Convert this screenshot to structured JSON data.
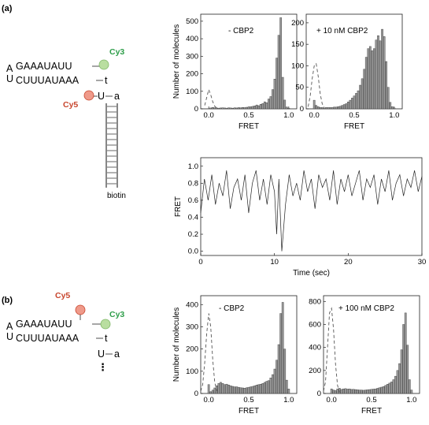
{
  "panel_a": {
    "label": "(a)",
    "construct": {
      "top_strand": "GAAAUAUU",
      "bottom_strand": "CUUUAUAAA",
      "loop_top": "A",
      "loop_bottom": "U",
      "pair1_left": "A",
      "pair1_right": "t",
      "pair2_left": "U",
      "pair2_right": "a",
      "dye_donor": "Cy3",
      "dye_acceptor": "Cy5",
      "tether": "biotin"
    }
  },
  "panel_b": {
    "label": "(b)",
    "construct": {
      "top_strand": "GAAAUAUU",
      "bottom_strand": "CUUUAUAAA",
      "loop_top": "A",
      "loop_bottom": "U",
      "pair1_left": "A",
      "pair1_right": "t",
      "pair2_left": "U",
      "pair2_right": "a",
      "ellipsis": "⋮",
      "dye_donor": "Cy3",
      "dye_acceptor": "Cy5"
    }
  },
  "colors": {
    "cy3": "#2e9e4a",
    "cy3_bead": "#b9dea0",
    "cy5": "#c8462e",
    "cy5_bead": "#ef9a8a"
  },
  "chart_data": [
    {
      "type": "bar",
      "panel": "(a)",
      "annotation": "- CBP2",
      "xlabel": "FRET",
      "ylabel": "Number of molecules",
      "xlim": [
        -0.1,
        1.1
      ],
      "ylim": [
        0,
        540
      ],
      "xticks": [
        "0.0",
        "0.5",
        "1.0"
      ],
      "yticks": [
        "0",
        "100",
        "200",
        "300",
        "400",
        "500"
      ],
      "bin_width": 0.025,
      "bins_x": [
        0.0,
        0.025,
        0.05,
        0.075,
        0.1,
        0.125,
        0.15,
        0.175,
        0.2,
        0.225,
        0.25,
        0.275,
        0.3,
        0.325,
        0.35,
        0.375,
        0.4,
        0.425,
        0.45,
        0.475,
        0.5,
        0.525,
        0.55,
        0.575,
        0.6,
        0.625,
        0.65,
        0.675,
        0.7,
        0.725,
        0.75,
        0.775,
        0.8,
        0.825,
        0.85,
        0.875,
        0.9,
        0.925,
        0.95,
        0.975,
        1.0
      ],
      "bars": [
        0,
        5,
        8,
        6,
        5,
        4,
        5,
        6,
        5,
        4,
        6,
        5,
        4,
        6,
        5,
        7,
        6,
        8,
        7,
        9,
        10,
        12,
        14,
        17,
        22,
        18,
        26,
        30,
        40,
        35,
        56,
        70,
        110,
        170,
        290,
        420,
        520,
        180,
        50,
        10,
        4
      ],
      "dashed_curve": {
        "x": [
          -0.05,
          -0.025,
          0.0,
          0.025,
          0.05,
          0.075,
          0.1
        ],
        "y": [
          20,
          65,
          110,
          80,
          40,
          15,
          5
        ]
      }
    },
    {
      "type": "bar",
      "panel": "(a)",
      "annotation": "+ 10 nM CBP2",
      "xlabel": "FRET",
      "ylabel": "",
      "xlim": [
        -0.1,
        1.1
      ],
      "ylim": [
        0,
        220
      ],
      "xticks": [
        "0.0",
        "0.5",
        "1.0"
      ],
      "yticks": [
        "0",
        "50",
        "100",
        "150",
        "200"
      ],
      "bin_width": 0.025,
      "bins_x": [
        0.0,
        0.025,
        0.05,
        0.075,
        0.1,
        0.125,
        0.15,
        0.175,
        0.2,
        0.225,
        0.25,
        0.275,
        0.3,
        0.325,
        0.35,
        0.375,
        0.4,
        0.425,
        0.45,
        0.475,
        0.5,
        0.525,
        0.55,
        0.575,
        0.6,
        0.625,
        0.65,
        0.675,
        0.7,
        0.725,
        0.75,
        0.775,
        0.8,
        0.825,
        0.85,
        0.875,
        0.9,
        0.925,
        0.95,
        0.975,
        1.0
      ],
      "bars": [
        20,
        8,
        5,
        3,
        3,
        2,
        3,
        3,
        3,
        3,
        4,
        4,
        5,
        6,
        8,
        10,
        12,
        16,
        20,
        25,
        30,
        36,
        42,
        55,
        70,
        92,
        120,
        140,
        145,
        135,
        140,
        160,
        170,
        158,
        185,
        168,
        110,
        50,
        15,
        5,
        2
      ],
      "dashed_curve": {
        "x": [
          -0.075,
          -0.05,
          -0.025,
          0.0,
          0.025,
          0.05,
          0.075,
          0.1,
          0.125
        ],
        "y": [
          5,
          30,
          70,
          100,
          105,
          75,
          35,
          12,
          3
        ]
      }
    },
    {
      "type": "line",
      "panel": "(a)",
      "xlabel": "Time (sec)",
      "ylabel": "FRET",
      "xlim": [
        0,
        30
      ],
      "ylim": [
        -0.05,
        1.1
      ],
      "xticks": [
        "0",
        "10",
        "20",
        "30"
      ],
      "yticks": [
        "0.0",
        "0.2",
        "0.4",
        "0.6",
        "0.8",
        "1.0"
      ],
      "series": [
        {
          "x": [
            0,
            0.5,
            1,
            1.5,
            2,
            2.5,
            3,
            3.5,
            4,
            4.5,
            5,
            5.5,
            6,
            6.5,
            7,
            7.5,
            8,
            8.5,
            9,
            9.5,
            10,
            10.3,
            10.6,
            11,
            11.5,
            12,
            12.5,
            13,
            13.5,
            14,
            14.5,
            15,
            15.5,
            16,
            16.5,
            17,
            17.5,
            18,
            18.5,
            19,
            19.5,
            20,
            20.5,
            21,
            21.5,
            22,
            22.5,
            23,
            23.5,
            24,
            24.5,
            25,
            25.5,
            26,
            26.5,
            27,
            27.5,
            28,
            28.5,
            29,
            29.5,
            30
          ],
          "y": [
            0.45,
            0.85,
            0.6,
            0.9,
            0.55,
            0.8,
            0.65,
            0.95,
            0.5,
            0.75,
            0.85,
            0.6,
            0.9,
            0.45,
            0.8,
            0.95,
            0.6,
            0.85,
            0.55,
            0.9,
            0.7,
            0.2,
            0.85,
            0.0,
            0.55,
            0.9,
            0.65,
            0.8,
            0.6,
            0.95,
            0.7,
            0.85,
            0.5,
            0.9,
            0.75,
            0.85,
            0.6,
            0.95,
            0.55,
            0.85,
            0.7,
            0.9,
            0.65,
            0.8,
            0.95,
            0.6,
            0.85,
            0.75,
            0.9,
            0.55,
            0.85,
            0.7,
            0.95,
            0.6,
            0.8,
            0.9,
            0.65,
            0.85,
            0.75,
            0.95,
            0.7,
            0.88
          ]
        }
      ]
    },
    {
      "type": "bar",
      "panel": "(b)",
      "annotation": "- CBP2",
      "xlabel": "FRET",
      "ylabel": "Number of molecules",
      "xlim": [
        -0.1,
        1.1
      ],
      "ylim": [
        0,
        440
      ],
      "xticks": [
        "0.0",
        "0.5",
        "1.0"
      ],
      "yticks": [
        "0",
        "100",
        "200",
        "300",
        "400"
      ],
      "bin_width": 0.025,
      "bins_x": [
        0.0,
        0.025,
        0.05,
        0.075,
        0.1,
        0.125,
        0.15,
        0.175,
        0.2,
        0.225,
        0.25,
        0.275,
        0.3,
        0.325,
        0.35,
        0.375,
        0.4,
        0.425,
        0.45,
        0.475,
        0.5,
        0.525,
        0.55,
        0.575,
        0.6,
        0.625,
        0.65,
        0.675,
        0.7,
        0.725,
        0.75,
        0.775,
        0.8,
        0.825,
        0.85,
        0.875,
        0.9,
        0.925,
        0.95,
        0.975,
        1.0
      ],
      "bars": [
        40,
        8,
        15,
        25,
        35,
        45,
        50,
        45,
        40,
        42,
        38,
        35,
        32,
        30,
        30,
        28,
        26,
        25,
        24,
        26,
        28,
        30,
        32,
        35,
        38,
        40,
        42,
        45,
        50,
        55,
        58,
        70,
        85,
        110,
        150,
        220,
        360,
        410,
        200,
        60,
        20
      ],
      "dashed_curve": {
        "x": [
          -0.1,
          -0.075,
          -0.05,
          -0.025,
          0.0,
          0.025,
          0.05,
          0.075,
          0.1,
          0.125
        ],
        "y": [
          10,
          40,
          140,
          270,
          360,
          300,
          150,
          50,
          15,
          3
        ]
      }
    },
    {
      "type": "bar",
      "panel": "(b)",
      "annotation": "+ 100 nM CBP2",
      "xlabel": "FRET",
      "ylabel": "",
      "xlim": [
        -0.1,
        1.1
      ],
      "ylim": [
        0,
        850
      ],
      "xticks": [
        "0.0",
        "0.5",
        "1.0"
      ],
      "yticks": [
        "0",
        "200",
        "400",
        "600",
        "800"
      ],
      "bin_width": 0.025,
      "bins_x": [
        0.0,
        0.025,
        0.05,
        0.075,
        0.1,
        0.125,
        0.15,
        0.175,
        0.2,
        0.225,
        0.25,
        0.275,
        0.3,
        0.325,
        0.35,
        0.375,
        0.4,
        0.425,
        0.45,
        0.475,
        0.5,
        0.525,
        0.55,
        0.575,
        0.6,
        0.625,
        0.65,
        0.675,
        0.7,
        0.725,
        0.75,
        0.775,
        0.8,
        0.825,
        0.85,
        0.875,
        0.9,
        0.925,
        0.95,
        0.975,
        1.0
      ],
      "bars": [
        40,
        30,
        25,
        40,
        45,
        35,
        40,
        42,
        38,
        40,
        35,
        36,
        34,
        32,
        30,
        30,
        28,
        30,
        32,
        34,
        36,
        38,
        40,
        45,
        50,
        55,
        60,
        70,
        80,
        90,
        100,
        120,
        150,
        200,
        260,
        380,
        600,
        700,
        420,
        120,
        30
      ],
      "dashed_curve": {
        "x": [
          -0.1,
          -0.075,
          -0.05,
          -0.025,
          0.0,
          0.025,
          0.05,
          0.075,
          0.1
        ],
        "y": [
          20,
          100,
          400,
          700,
          740,
          560,
          250,
          70,
          10
        ]
      }
    }
  ]
}
